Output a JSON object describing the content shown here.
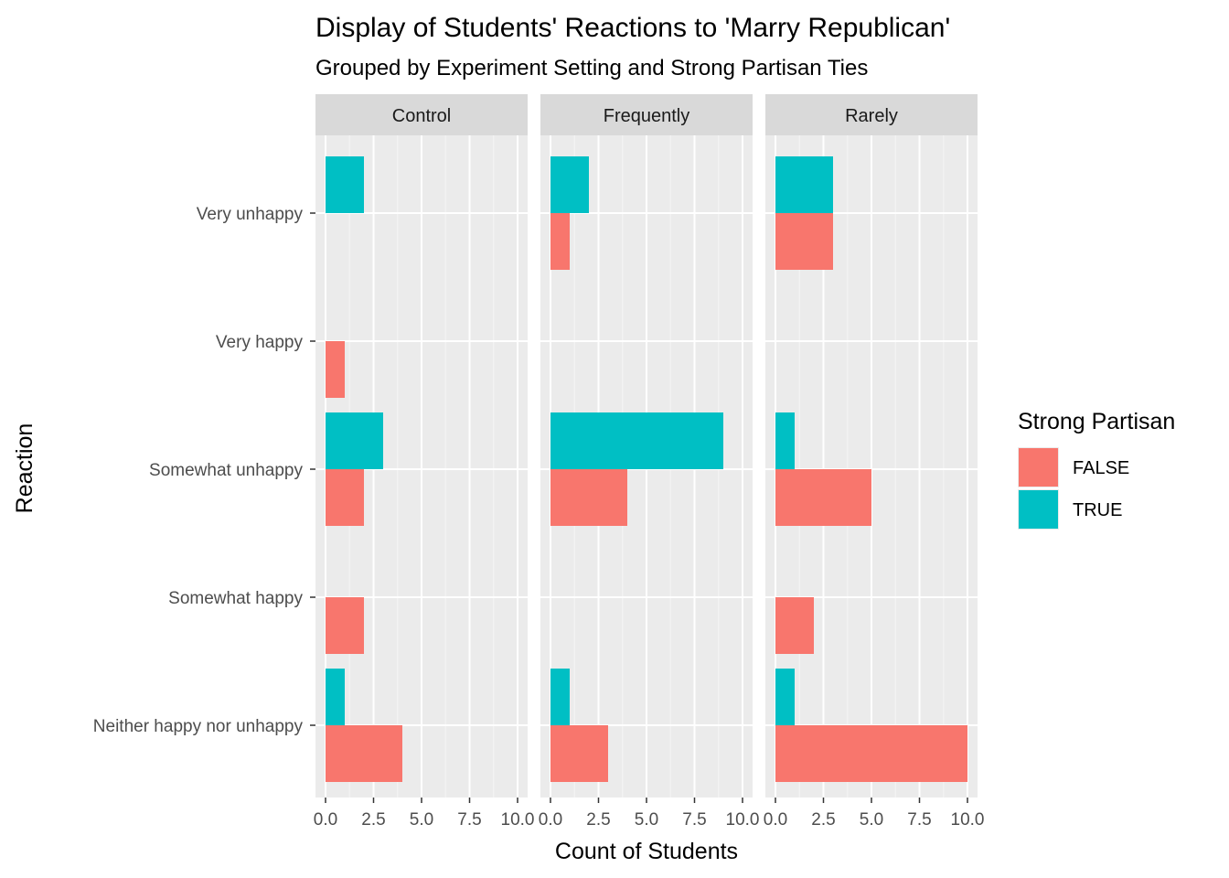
{
  "chart_data": {
    "type": "bar",
    "orientation": "horizontal",
    "layout": "faceted-columns",
    "title": "Display of Students' Reactions to 'Marry Republican'",
    "subtitle": "Grouped by Experiment Setting and Strong Partisan Ties",
    "xlabel": "Count of Students",
    "ylabel": "Reaction",
    "xlim": [
      0,
      10
    ],
    "x_ticks": [
      "0.0",
      "2.5",
      "5.0",
      "7.5",
      "10.0"
    ],
    "categories": [
      "Very unhappy",
      "Very happy",
      "Somewhat unhappy",
      "Somewhat happy",
      "Neither happy nor unhappy"
    ],
    "grid": true,
    "legend": {
      "title": "Strong Partisan",
      "position": "right",
      "entries": [
        {
          "label": "FALSE",
          "color": "#F8766D"
        },
        {
          "label": "TRUE",
          "color": "#00BFC4"
        }
      ]
    },
    "facets": [
      {
        "name": "Control",
        "series": [
          {
            "name": "FALSE",
            "values": [
              0,
              1,
              2,
              2,
              4
            ]
          },
          {
            "name": "TRUE",
            "values": [
              2,
              0,
              3,
              0,
              1
            ]
          }
        ]
      },
      {
        "name": "Frequently",
        "series": [
          {
            "name": "FALSE",
            "values": [
              1,
              0,
              4,
              0,
              3
            ]
          },
          {
            "name": "TRUE",
            "values": [
              2,
              0,
              9,
              0,
              1
            ]
          }
        ]
      },
      {
        "name": "Rarely",
        "series": [
          {
            "name": "FALSE",
            "values": [
              3,
              0,
              5,
              2,
              10
            ]
          },
          {
            "name": "TRUE",
            "values": [
              3,
              0,
              1,
              0,
              1
            ]
          }
        ]
      }
    ]
  }
}
